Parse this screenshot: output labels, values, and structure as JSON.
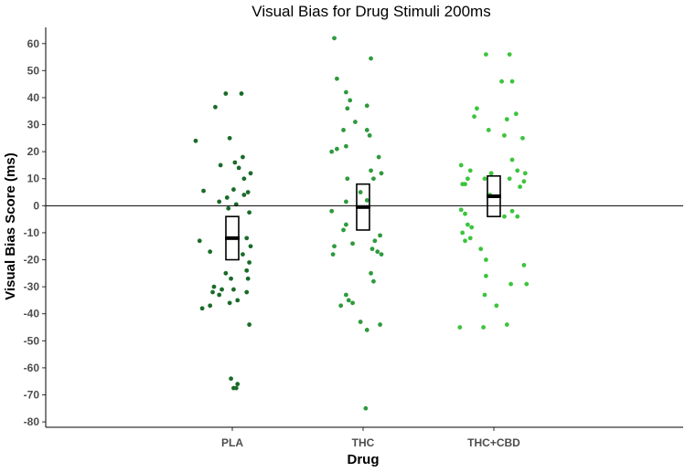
{
  "chart_data": {
    "type": "scatter",
    "title": "Visual Bias for Drug Stimuli 200ms",
    "xlabel": "Drug",
    "ylabel": "Visual Bias Score (ms)",
    "categories": [
      "PLA",
      "THC",
      "THC+CBD"
    ],
    "ylim": [
      -82,
      66
    ],
    "yticks": [
      60,
      50,
      40,
      30,
      20,
      10,
      0,
      -10,
      -20,
      -30,
      -40,
      -50,
      -60,
      -70,
      -80
    ],
    "reference_line": 0,
    "grid": false,
    "legend": "none",
    "series": [
      {
        "category": "PLA",
        "color": "#1a6b2a",
        "mean": -12,
        "ci": [
          -20,
          -4
        ],
        "points": [
          {
            "x": -0.05,
            "y": 41.5
          },
          {
            "x": 0.07,
            "y": 41.5
          },
          {
            "x": -0.13,
            "y": 36.5
          },
          {
            "x": -0.28,
            "y": 24
          },
          {
            "x": -0.02,
            "y": 25
          },
          {
            "x": 0.08,
            "y": 18
          },
          {
            "x": 0.02,
            "y": 16
          },
          {
            "x": -0.09,
            "y": 15
          },
          {
            "x": 0.05,
            "y": 14
          },
          {
            "x": 0.14,
            "y": 12
          },
          {
            "x": 0.09,
            "y": 10
          },
          {
            "x": -0.22,
            "y": 5.5
          },
          {
            "x": 0.01,
            "y": 6
          },
          {
            "x": 0.12,
            "y": 5
          },
          {
            "x": -0.04,
            "y": 3
          },
          {
            "x": 0.09,
            "y": 4
          },
          {
            "x": -0.1,
            "y": 1.5
          },
          {
            "x": 0.03,
            "y": 0.5
          },
          {
            "x": -0.03,
            "y": -1
          },
          {
            "x": 0.13,
            "y": -2.5
          },
          {
            "x": -0.25,
            "y": -13
          },
          {
            "x": -0.17,
            "y": -17
          },
          {
            "x": 0.11,
            "y": -12
          },
          {
            "x": 0.14,
            "y": -15
          },
          {
            "x": 0.08,
            "y": -18
          },
          {
            "x": 0.13,
            "y": -21
          },
          {
            "x": 0.11,
            "y": -24
          },
          {
            "x": 0.12,
            "y": -27
          },
          {
            "x": -0.05,
            "y": -25
          },
          {
            "x": -0.01,
            "y": -27
          },
          {
            "x": -0.14,
            "y": -30
          },
          {
            "x": -0.08,
            "y": -31
          },
          {
            "x": -0.15,
            "y": -32
          },
          {
            "x": 0.01,
            "y": -31
          },
          {
            "x": 0.11,
            "y": -32
          },
          {
            "x": -0.1,
            "y": -33
          },
          {
            "x": 0.04,
            "y": -35
          },
          {
            "x": -0.02,
            "y": -36
          },
          {
            "x": -0.17,
            "y": -37
          },
          {
            "x": -0.23,
            "y": -38
          },
          {
            "x": 0.13,
            "y": -44
          },
          {
            "x": -0.01,
            "y": -64
          },
          {
            "x": 0.04,
            "y": -66
          },
          {
            "x": 0.01,
            "y": -67.5
          },
          {
            "x": 0.03,
            "y": -67.5
          }
        ]
      },
      {
        "category": "THC",
        "color": "#2e9a3c",
        "mean": -0.5,
        "ci": [
          -9,
          8
        ],
        "points": [
          {
            "x": -0.22,
            "y": 62
          },
          {
            "x": 0.06,
            "y": 54.5
          },
          {
            "x": -0.2,
            "y": 47
          },
          {
            "x": -0.13,
            "y": 42
          },
          {
            "x": -0.1,
            "y": 39
          },
          {
            "x": -0.12,
            "y": 36
          },
          {
            "x": 0.03,
            "y": 37
          },
          {
            "x": -0.06,
            "y": 31
          },
          {
            "x": 0.03,
            "y": 28
          },
          {
            "x": 0.05,
            "y": 26
          },
          {
            "x": -0.15,
            "y": 28
          },
          {
            "x": -0.2,
            "y": 21
          },
          {
            "x": -0.24,
            "y": 20
          },
          {
            "x": -0.13,
            "y": 22
          },
          {
            "x": 0.12,
            "y": 18
          },
          {
            "x": 0.06,
            "y": 13
          },
          {
            "x": 0.14,
            "y": 12
          },
          {
            "x": 0.08,
            "y": 10
          },
          {
            "x": -0.12,
            "y": 10
          },
          {
            "x": -0.02,
            "y": 5
          },
          {
            "x": 0.03,
            "y": 2
          },
          {
            "x": -0.13,
            "y": 1.5
          },
          {
            "x": -0.24,
            "y": -2
          },
          {
            "x": -0.13,
            "y": -7
          },
          {
            "x": -0.15,
            "y": -9
          },
          {
            "x": 0.13,
            "y": -11
          },
          {
            "x": 0.09,
            "y": -13
          },
          {
            "x": -0.08,
            "y": -14
          },
          {
            "x": -0.22,
            "y": -15
          },
          {
            "x": 0.07,
            "y": -16
          },
          {
            "x": 0.11,
            "y": -17
          },
          {
            "x": -0.23,
            "y": -18
          },
          {
            "x": 0.14,
            "y": -18
          },
          {
            "x": 0.06,
            "y": -25
          },
          {
            "x": 0.08,
            "y": -28
          },
          {
            "x": -0.13,
            "y": -33
          },
          {
            "x": -0.11,
            "y": -35
          },
          {
            "x": -0.08,
            "y": -36
          },
          {
            "x": -0.17,
            "y": -37
          },
          {
            "x": -0.02,
            "y": -43
          },
          {
            "x": 0.13,
            "y": -44
          },
          {
            "x": 0.03,
            "y": -46
          },
          {
            "x": 0.02,
            "y": -75
          }
        ]
      },
      {
        "category": "THC+CBD",
        "color": "#3cc43c",
        "mean": 3.5,
        "ci": [
          -4,
          11
        ],
        "points": [
          {
            "x": -0.06,
            "y": 56
          },
          {
            "x": 0.12,
            "y": 56
          },
          {
            "x": 0.06,
            "y": 46
          },
          {
            "x": 0.14,
            "y": 46
          },
          {
            "x": -0.13,
            "y": 36
          },
          {
            "x": -0.15,
            "y": 33
          },
          {
            "x": 0.17,
            "y": 34
          },
          {
            "x": 0.1,
            "y": 32
          },
          {
            "x": 0.08,
            "y": 26
          },
          {
            "x": -0.04,
            "y": 28
          },
          {
            "x": 0.22,
            "y": 25
          },
          {
            "x": 0.14,
            "y": 17
          },
          {
            "x": -0.25,
            "y": 15
          },
          {
            "x": -0.18,
            "y": 13
          },
          {
            "x": 0.18,
            "y": 13
          },
          {
            "x": -0.02,
            "y": 12
          },
          {
            "x": 0.24,
            "y": 12
          },
          {
            "x": -0.2,
            "y": 10
          },
          {
            "x": -0.07,
            "y": 10
          },
          {
            "x": 0.12,
            "y": 10
          },
          {
            "x": -0.24,
            "y": 8
          },
          {
            "x": -0.22,
            "y": 8
          },
          {
            "x": 0.2,
            "y": 7
          },
          {
            "x": 0.23,
            "y": 9
          },
          {
            "x": -0.03,
            "y": 4
          },
          {
            "x": -0.25,
            "y": -1.5
          },
          {
            "x": -0.22,
            "y": -3
          },
          {
            "x": 0.14,
            "y": -2
          },
          {
            "x": -0.2,
            "y": -7
          },
          {
            "x": -0.17,
            "y": -8
          },
          {
            "x": 0.08,
            "y": -4
          },
          {
            "x": 0.18,
            "y": -4
          },
          {
            "x": -0.24,
            "y": -10
          },
          {
            "x": -0.18,
            "y": -12
          },
          {
            "x": -0.22,
            "y": -13
          },
          {
            "x": -0.1,
            "y": -16
          },
          {
            "x": -0.06,
            "y": -20
          },
          {
            "x": 0.23,
            "y": -22
          },
          {
            "x": -0.06,
            "y": -26
          },
          {
            "x": 0.13,
            "y": -29
          },
          {
            "x": 0.25,
            "y": -29
          },
          {
            "x": -0.07,
            "y": -33
          },
          {
            "x": 0.02,
            "y": -37
          },
          {
            "x": -0.26,
            "y": -45
          },
          {
            "x": -0.08,
            "y": -45
          },
          {
            "x": 0.1,
            "y": -44
          }
        ]
      }
    ]
  }
}
